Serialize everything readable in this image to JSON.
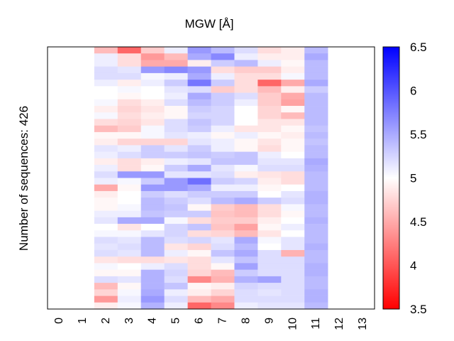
{
  "chart_data": {
    "type": "heatmap",
    "title": "MGW [Å]",
    "ylabel": "Number of sequences: 426",
    "xlabel": "",
    "x_ticks": [
      "0",
      "1",
      "2",
      "3",
      "4",
      "5",
      "6",
      "7",
      "8",
      "9",
      "10",
      "11",
      "12",
      "13"
    ],
    "n_rows": 426,
    "row_bands": 40,
    "data_columns": [
      2,
      3,
      4,
      5,
      6,
      7,
      8,
      9,
      10,
      11
    ],
    "values": [
      [
        4.6,
        4.1,
        4.7,
        5.1,
        5.6,
        5.4,
        5.2,
        4.8,
        4.9,
        5.4
      ],
      [
        5.1,
        4.8,
        4.4,
        4.6,
        5.5,
        5.7,
        5.1,
        4.9,
        4.9,
        5.5
      ],
      [
        5.1,
        4.8,
        4.5,
        4.5,
        4.9,
        5.3,
        5.4,
        5.1,
        4.95,
        5.4
      ],
      [
        5.2,
        5.15,
        5.6,
        5.7,
        5.6,
        4.8,
        4.7,
        4.7,
        4.9,
        5.4
      ],
      [
        5.2,
        5.2,
        5.05,
        5.1,
        5.5,
        5.1,
        4.8,
        4.8,
        5.05,
        5.4
      ],
      [
        5.1,
        4.9,
        5.1,
        5.3,
        5.8,
        5.3,
        4.8,
        4.1,
        4.5,
        5.5
      ],
      [
        5.0,
        5.05,
        5.0,
        5.15,
        5.2,
        4.7,
        4.8,
        4.6,
        4.9,
        5.3
      ],
      [
        5.0,
        4.95,
        5.0,
        5.1,
        5.5,
        5.3,
        5.2,
        4.7,
        4.5,
        5.4
      ],
      [
        5.05,
        4.8,
        4.9,
        5.2,
        5.4,
        5.3,
        5.1,
        4.7,
        4.45,
        5.4
      ],
      [
        4.9,
        4.75,
        4.85,
        4.95,
        5.3,
        5.25,
        5.0,
        4.75,
        4.95,
        5.4
      ],
      [
        5.05,
        4.8,
        4.9,
        4.95,
        5.25,
        5.25,
        5.0,
        4.75,
        4.6,
        5.4
      ],
      [
        4.8,
        4.75,
        4.85,
        5.2,
        5.35,
        5.25,
        5.0,
        4.85,
        4.85,
        5.4
      ],
      [
        4.6,
        4.7,
        5.05,
        5.2,
        5.3,
        5.1,
        4.85,
        4.85,
        4.95,
        5.35
      ],
      [
        4.95,
        4.95,
        5.05,
        5.15,
        5.1,
        4.95,
        5.1,
        4.95,
        4.9,
        5.4
      ],
      [
        4.9,
        4.75,
        4.75,
        4.75,
        5.15,
        5.1,
        4.95,
        4.85,
        4.95,
        5.35
      ],
      [
        5.15,
        5.1,
        5.3,
        5.15,
        5.3,
        5.1,
        4.95,
        4.8,
        4.95,
        5.4
      ],
      [
        5.1,
        5.2,
        5.3,
        5.3,
        5.35,
        5.3,
        5.35,
        5.1,
        5.0,
        5.4
      ],
      [
        4.9,
        4.8,
        4.9,
        5.1,
        5.15,
        5.35,
        5.35,
        5.15,
        5.15,
        5.5
      ],
      [
        5.1,
        4.8,
        4.95,
        5.3,
        5.5,
        5.15,
        5.05,
        5.2,
        5.2,
        5.45
      ],
      [
        5.2,
        5.6,
        5.6,
        5.15,
        5.15,
        5.2,
        4.9,
        4.85,
        4.8,
        5.4
      ],
      [
        5.1,
        5.05,
        5.3,
        5.6,
        5.85,
        5.3,
        5.25,
        4.9,
        4.8,
        5.4
      ],
      [
        4.5,
        4.95,
        5.6,
        5.6,
        5.5,
        5.1,
        5.1,
        4.95,
        5.0,
        5.4
      ],
      [
        4.9,
        5.0,
        5.3,
        5.2,
        5.3,
        5.3,
        5.3,
        5.0,
        5.15,
        5.45
      ],
      [
        4.95,
        5.0,
        5.4,
        5.3,
        5.2,
        5.4,
        5.5,
        5.3,
        5.2,
        5.45
      ],
      [
        4.95,
        5.05,
        5.4,
        5.35,
        4.95,
        4.7,
        4.6,
        4.8,
        5.05,
        5.4
      ],
      [
        5.1,
        5.1,
        5.35,
        5.3,
        5.3,
        4.65,
        4.6,
        4.8,
        4.95,
        5.4
      ],
      [
        5.15,
        5.5,
        5.5,
        5.05,
        4.8,
        4.7,
        4.7,
        4.9,
        5.0,
        5.45
      ],
      [
        5.0,
        4.85,
        5.0,
        5.25,
        5.35,
        4.65,
        4.45,
        4.95,
        5.1,
        5.4
      ],
      [
        5.05,
        5.05,
        5.15,
        5.25,
        4.8,
        4.75,
        4.6,
        4.85,
        5.0,
        5.4
      ],
      [
        5.2,
        5.15,
        5.4,
        5.2,
        5.25,
        5.15,
        5.5,
        5.05,
        5.15,
        5.4
      ],
      [
        5.15,
        5.2,
        5.4,
        4.85,
        4.75,
        5.2,
        5.4,
        5.0,
        5.15,
        5.45
      ],
      [
        5.2,
        5.15,
        5.4,
        5.1,
        4.95,
        5.35,
        5.5,
        5.2,
        4.55,
        5.4
      ],
      [
        4.85,
        4.8,
        4.8,
        4.85,
        4.8,
        5.15,
        5.35,
        5.2,
        5.2,
        5.4
      ],
      [
        5.05,
        5.0,
        5.1,
        5.2,
        4.8,
        4.95,
        5.55,
        5.2,
        5.2,
        5.45
      ],
      [
        4.95,
        4.95,
        5.45,
        5.25,
        4.75,
        4.6,
        5.3,
        5.2,
        5.2,
        5.45
      ],
      [
        5.2,
        5.15,
        5.45,
        5.2,
        4.3,
        4.55,
        5.45,
        5.55,
        5.2,
        5.4
      ],
      [
        4.6,
        4.95,
        5.45,
        5.35,
        4.95,
        4.9,
        5.25,
        5.2,
        5.2,
        5.4
      ],
      [
        4.75,
        5.05,
        5.5,
        5.1,
        4.9,
        4.75,
        5.2,
        5.15,
        5.2,
        5.45
      ],
      [
        4.4,
        5.1,
        5.6,
        5.2,
        4.6,
        4.5,
        5.2,
        5.2,
        5.2,
        5.45
      ],
      [
        4.9,
        5.05,
        5.45,
        5.1,
        4.1,
        4.3,
        5.1,
        5.15,
        5.15,
        5.4
      ]
    ],
    "colorbar": {
      "min": 3.5,
      "max": 6.5,
      "center": 5,
      "ticks": [
        "3.5",
        "4",
        "4.5",
        "5",
        "5.5",
        "6",
        "6.5"
      ],
      "low_color": "#ff0000",
      "mid_color": "#ffffff",
      "high_color": "#0000ff"
    }
  }
}
